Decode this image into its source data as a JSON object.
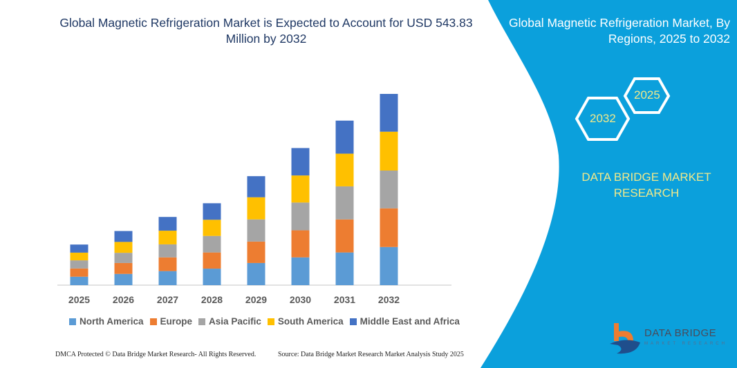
{
  "header": {
    "title": "Global Magnetic Refrigeration Market is Expected to Account for USD 543.83 Million by 2032",
    "right_title": "Global Magnetic Refrigeration Market, By Regions, 2025 to 2032"
  },
  "badges": {
    "year_start": "2025",
    "year_end": "2032"
  },
  "brand": {
    "name": "DATA BRIDGE MARKET RESEARCH",
    "logo_text": "DATA BRIDGE",
    "logo_sub": "MARKET RESEARCH"
  },
  "footer": {
    "left": "DMCA Protected © Data Bridge Market Research- All Rights Reserved.",
    "right": "Source: Data Bridge Market Research Market Analysis Study 2025"
  },
  "colors": {
    "panel": "#0ba0dc",
    "title": "#1f3864",
    "badge_text": "#f1e98a"
  },
  "chart_data": {
    "type": "bar",
    "stacked": true,
    "title": "",
    "xlabel": "",
    "ylabel": "",
    "categories": [
      "2025",
      "2026",
      "2027",
      "2028",
      "2029",
      "2030",
      "2031",
      "2032"
    ],
    "series": [
      {
        "name": "North America",
        "color": "#5b9bd5",
        "values": [
          24,
          32,
          40,
          47,
          63,
          79,
          93,
          108.5
        ]
      },
      {
        "name": "Europe",
        "color": "#ed7d31",
        "values": [
          23.5,
          31,
          39,
          46,
          61,
          77,
          94,
          110
        ]
      },
      {
        "name": "Asia Pacific",
        "color": "#a5a5a5",
        "values": [
          23,
          29,
          37,
          47,
          63,
          79,
          94,
          107.5
        ]
      },
      {
        "name": "South America",
        "color": "#ffc000",
        "values": [
          22,
          31,
          39,
          46,
          63,
          77,
          93,
          110.5
        ]
      },
      {
        "name": "Middle East and Africa",
        "color": "#4472c4",
        "values": [
          23,
          31,
          39,
          47,
          60,
          78,
          94,
          107.5
        ]
      }
    ],
    "ylim": [
      0,
      544
    ],
    "grid": false,
    "y_axis_shown": false,
    "legend_position": "bottom"
  }
}
